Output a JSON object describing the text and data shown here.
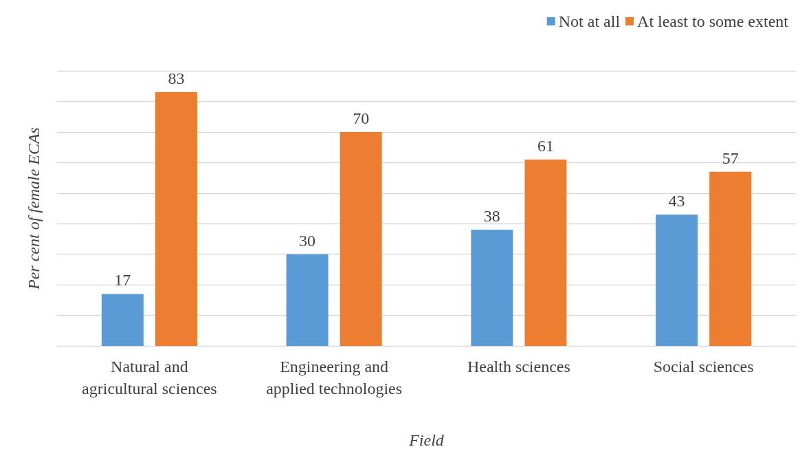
{
  "chart_data": {
    "type": "bar",
    "xlabel": "Field",
    "ylabel": "Per cent of female ECAs",
    "categories": [
      "Natural and\nagricultural sciences",
      "Engineering and\napplied technologies",
      "Health sciences",
      "Social sciences"
    ],
    "series": [
      {
        "name": "Not at all",
        "color": "#5b9bd5",
        "values": [
          17,
          30,
          38,
          43
        ]
      },
      {
        "name": "At least to some extent",
        "color": "#ed7d31",
        "values": [
          83,
          70,
          61,
          57
        ]
      }
    ],
    "ylim": [
      0,
      90
    ],
    "yticks": [
      {
        "value": 0,
        "label": null
      },
      {
        "value": 10,
        "label": null
      },
      {
        "value": 20,
        "label": null
      },
      {
        "value": 30,
        "label": null
      },
      {
        "value": 40,
        "label": null
      },
      {
        "value": 50,
        "label": null
      },
      {
        "value": 60,
        "label": null
      },
      {
        "value": 70,
        "label": null
      },
      {
        "value": 80,
        "label": null
      },
      {
        "value": 90,
        "label": null
      }
    ],
    "tick_labels": "x",
    "grid": "y",
    "legend": "top right",
    "data_labels": true
  }
}
